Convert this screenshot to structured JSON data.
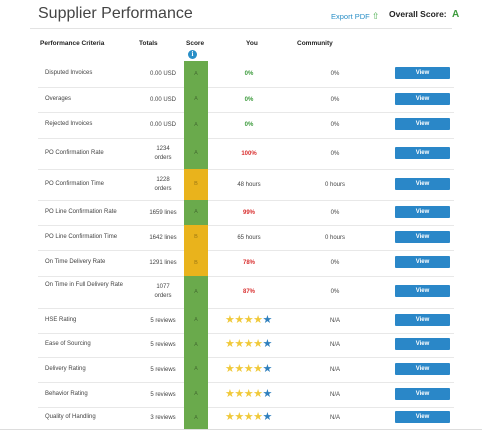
{
  "header": {
    "title": "Supplier Performance",
    "export_label": "Export PDF",
    "overall_label": "Overall Score:",
    "overall_grade": "A"
  },
  "columns": {
    "criteria": "Performance Criteria",
    "totals": "Totals",
    "score": "Score",
    "you": "You",
    "community": "Community"
  },
  "colors": {
    "score_green": "#6aaa4c",
    "score_yellow": "#e9b31c",
    "good_value": "#3c9b3c",
    "bad_value": "#d92f2f",
    "button": "#2a87c8",
    "star_gold": "#f0c93a",
    "star_blue": "#2e7fbd"
  },
  "icons": {
    "info": "info-icon",
    "export": "export-arrow-icon",
    "star_full": "star-icon"
  },
  "view_label": "View",
  "rows": [
    {
      "criteria": "Disputed Invoices",
      "totals": "0.00 USD",
      "score": "A",
      "score_color": "green",
      "you": "0%",
      "you_color": "good",
      "community": "0%"
    },
    {
      "criteria": "Overages",
      "totals": "0.00 USD",
      "score": "A",
      "score_color": "green",
      "you": "0%",
      "you_color": "good",
      "community": "0%"
    },
    {
      "criteria": "Rejected Invoices",
      "totals": "0.00 USD",
      "score": "A",
      "score_color": "green",
      "you": "0%",
      "you_color": "good",
      "community": "0%"
    },
    {
      "criteria": "PO Confirmation Rate",
      "totals": "1234 orders",
      "score": "A",
      "score_color": "green",
      "you": "100%",
      "you_color": "bad",
      "community": "0%"
    },
    {
      "criteria": "PO Confirmation Time",
      "totals": "1228 orders",
      "score": "B",
      "score_color": "yellow",
      "you": "48 hours",
      "you_color": "plain",
      "community": "0 hours"
    },
    {
      "criteria": "PO Line Confirmation Rate",
      "totals": "1659 lines",
      "score": "A",
      "score_color": "green",
      "you": "99%",
      "you_color": "bad",
      "community": "0%"
    },
    {
      "criteria": "PO Line Confirmation Time",
      "totals": "1642 lines",
      "score": "B",
      "score_color": "yellow",
      "you": "65 hours",
      "you_color": "plain",
      "community": "0 hours"
    },
    {
      "criteria": "On Time Delivery Rate",
      "totals": "1291 lines",
      "score": "B",
      "score_color": "yellow",
      "you": "78%",
      "you_color": "bad",
      "community": "0%"
    },
    {
      "criteria": "On Time in Full Delivery Rate",
      "totals": "1077 orders",
      "score": "A",
      "score_color": "green",
      "you": "87%",
      "you_color": "bad",
      "community": "0%"
    },
    {
      "criteria": "HSE Rating",
      "totals": "5 reviews",
      "score": "A",
      "score_color": "green",
      "rating": 4,
      "community": "N/A"
    },
    {
      "criteria": "Ease of Sourcing",
      "totals": "5 reviews",
      "score": "A",
      "score_color": "green",
      "rating": 4,
      "community": "N/A"
    },
    {
      "criteria": "Delivery Rating",
      "totals": "5 reviews",
      "score": "A",
      "score_color": "green",
      "rating": 4,
      "community": "N/A"
    },
    {
      "criteria": "Behavior Rating",
      "totals": "5 reviews",
      "score": "A",
      "score_color": "green",
      "rating": 4,
      "community": "N/A"
    },
    {
      "criteria": "Quality of Handling",
      "totals": "3 reviews",
      "score": "A",
      "score_color": "green",
      "rating": 4,
      "community": "N/A"
    }
  ]
}
